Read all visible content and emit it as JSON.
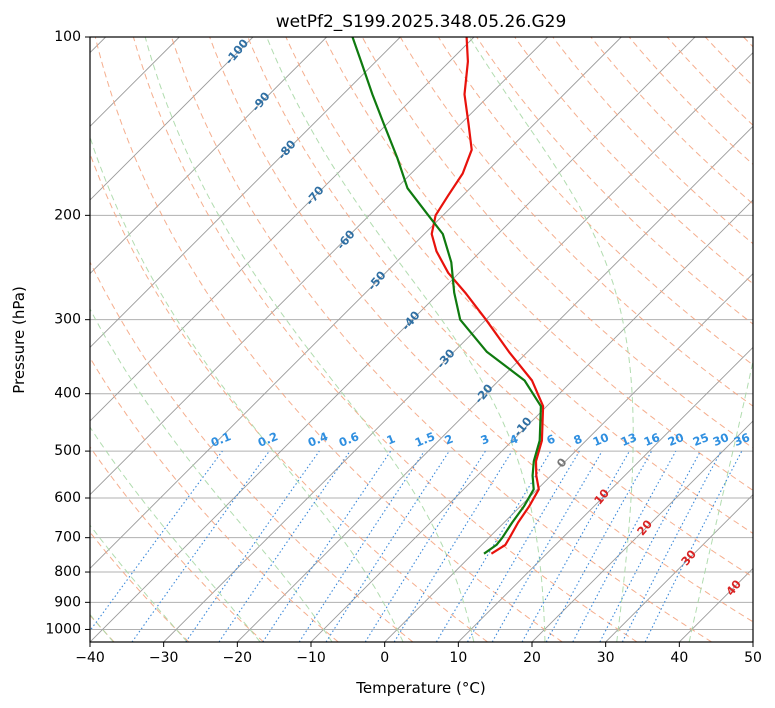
{
  "chart_data": {
    "type": "line",
    "subtype": "skew-t-log-p",
    "title": "wetPf2_S199.2025.348.05.26.G29",
    "xlabel": "Temperature (°C)",
    "ylabel": "Pressure (hPa)",
    "xlim": [
      -40,
      50
    ],
    "ylim": [
      1050,
      100
    ],
    "x_ticks": [
      -40,
      -30,
      -20,
      -10,
      0,
      10,
      20,
      30,
      40,
      50
    ],
    "y_ticks": [
      1000,
      900,
      800,
      700,
      600,
      500,
      400,
      300,
      200,
      100
    ],
    "grid": true,
    "series": [
      {
        "name": "temperature",
        "color": "#e8120c",
        "points": [
          {
            "p": 745,
            "t": 2.5
          },
          {
            "p": 720,
            "t": 3.2
          },
          {
            "p": 700,
            "t": 2.8
          },
          {
            "p": 660,
            "t": 1.9
          },
          {
            "p": 620,
            "t": 1.2
          },
          {
            "p": 580,
            "t": 0.2
          },
          {
            "p": 550,
            "t": -2.0
          },
          {
            "p": 520,
            "t": -4.0
          },
          {
            "p": 480,
            "t": -6.0
          },
          {
            "p": 420,
            "t": -10.5
          },
          {
            "p": 380,
            "t": -15.5
          },
          {
            "p": 340,
            "t": -22.5
          },
          {
            "p": 300,
            "t": -30.0
          },
          {
            "p": 270,
            "t": -36.5
          },
          {
            "p": 250,
            "t": -41.5
          },
          {
            "p": 230,
            "t": -46.0
          },
          {
            "p": 215,
            "t": -49.0
          },
          {
            "p": 200,
            "t": -51.0
          },
          {
            "p": 185,
            "t": -52.0
          },
          {
            "p": 170,
            "t": -53.0
          },
          {
            "p": 155,
            "t": -55.0
          },
          {
            "p": 140,
            "t": -59.0
          },
          {
            "p": 125,
            "t": -63.5
          },
          {
            "p": 110,
            "t": -67.5
          },
          {
            "p": 100,
            "t": -71.0
          }
        ]
      },
      {
        "name": "dewpoint",
        "color": "#0f7a0f",
        "points": [
          {
            "p": 745,
            "t": 1.5
          },
          {
            "p": 720,
            "t": 2.0
          },
          {
            "p": 700,
            "t": 1.8
          },
          {
            "p": 660,
            "t": 1.1
          },
          {
            "p": 620,
            "t": 0.5
          },
          {
            "p": 580,
            "t": -0.5
          },
          {
            "p": 550,
            "t": -2.5
          },
          {
            "p": 520,
            "t": -4.3
          },
          {
            "p": 480,
            "t": -6.3
          },
          {
            "p": 420,
            "t": -10.8
          },
          {
            "p": 380,
            "t": -16.5
          },
          {
            "p": 340,
            "t": -25.5
          },
          {
            "p": 300,
            "t": -33.5
          },
          {
            "p": 270,
            "t": -38.0
          },
          {
            "p": 240,
            "t": -42.5
          },
          {
            "p": 215,
            "t": -47.5
          },
          {
            "p": 200,
            "t": -52.0
          },
          {
            "p": 180,
            "t": -58.5
          },
          {
            "p": 160,
            "t": -64.0
          },
          {
            "p": 140,
            "t": -70.5
          },
          {
            "p": 125,
            "t": -76.0
          },
          {
            "p": 110,
            "t": -82.0
          },
          {
            "p": 100,
            "t": -86.5
          }
        ]
      }
    ],
    "dry_adiabats": [
      -100,
      -90,
      -80,
      -70,
      -60,
      -50,
      -40,
      -30,
      -20,
      -10
    ],
    "moist_adiabats": [
      0,
      10,
      20,
      30,
      40
    ],
    "mixing_ratios": [
      "0.1",
      "0.2",
      "0.4",
      "0.6",
      "1",
      "1.5",
      "2",
      "3",
      "4",
      "6",
      "8",
      "10",
      "13",
      "16",
      "20",
      "25",
      "30",
      "36"
    ],
    "colors": {
      "isotherm": "#9a9a9a",
      "dry_adiabat": "#f4a582",
      "moist_adiabat": "#a9d8a6",
      "mixing_ratio": "#3a88d9",
      "dry_label": "#2f6fa3",
      "moist_label": "#d92323",
      "mixing_label": "#2f8fe0",
      "zero_label": "#777777"
    }
  }
}
